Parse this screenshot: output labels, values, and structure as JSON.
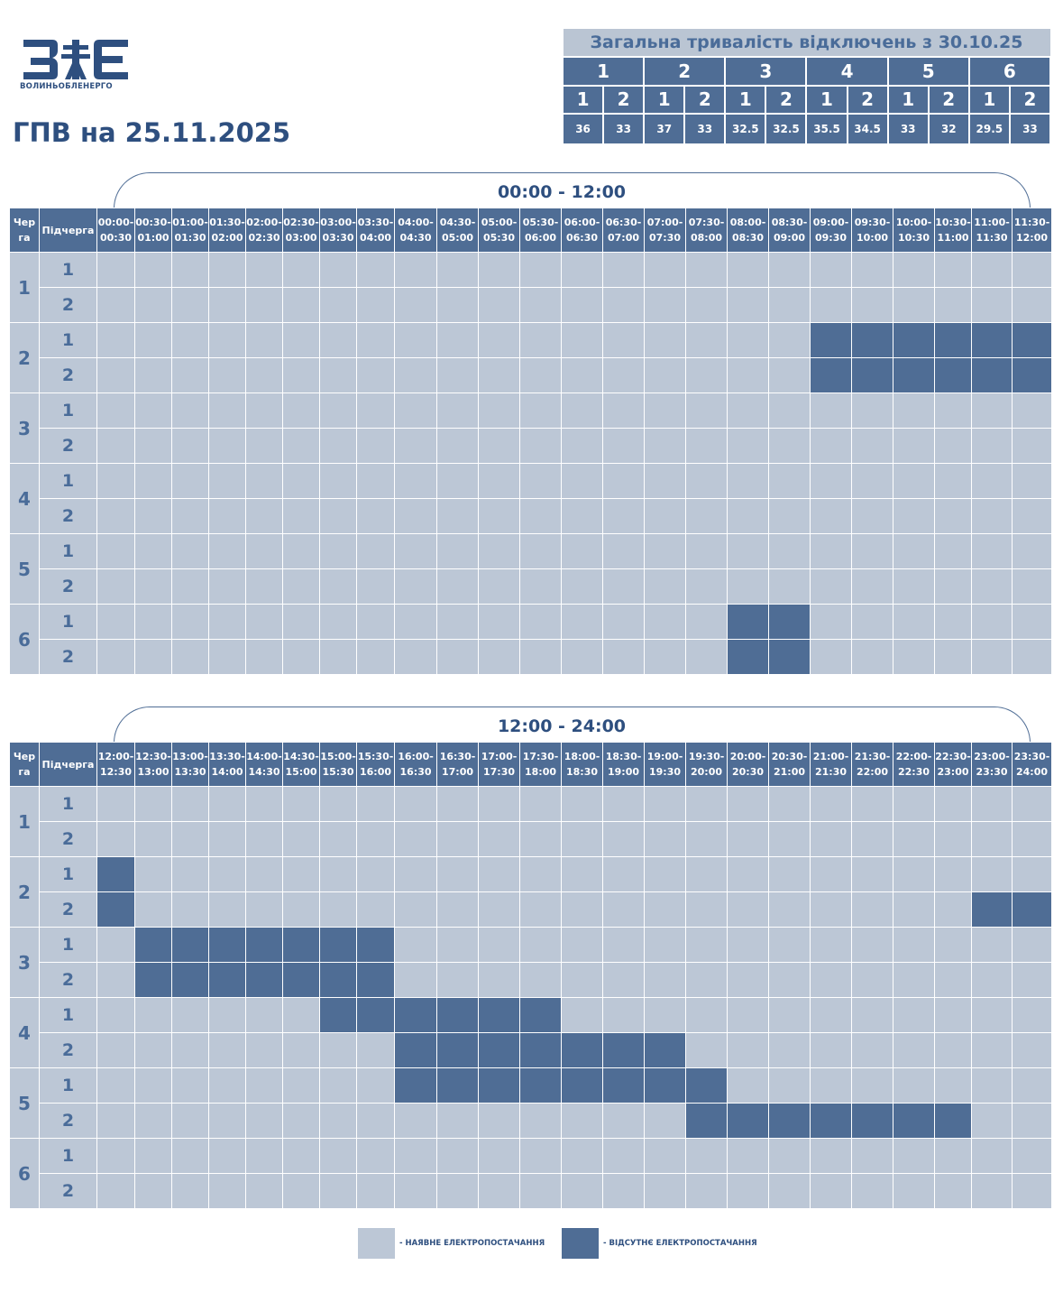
{
  "logo": {
    "text": "ВОЛИНЬОБЛЕНЕРГО",
    "icon": "zoe-logo-icon",
    "color": "#2e4f7f"
  },
  "title": "ГПВ на 25.11.2025",
  "summary": {
    "title": "Загальна тривалість відключень з 30.10.25",
    "queues": [
      "1",
      "2",
      "3",
      "4",
      "5",
      "6"
    ],
    "subqueues": [
      "1",
      "2",
      "1",
      "2",
      "1",
      "2",
      "1",
      "2",
      "1",
      "2",
      "1",
      "2"
    ],
    "durations": [
      "36",
      "33",
      "37",
      "33",
      "32.5",
      "32.5",
      "35.5",
      "34.5",
      "33",
      "32",
      "29.5",
      "33"
    ]
  },
  "headers": {
    "queue": "Черга",
    "subqueue": "Підчерга"
  },
  "colors": {
    "on": "#bcc7d6",
    "off": "#4f6d95",
    "text": "#2e4f7f"
  },
  "sections": [
    {
      "label": "00:00 - 12:00",
      "slots": [
        [
          "00:00-",
          "00:30"
        ],
        [
          "00:30-",
          "01:00"
        ],
        [
          "01:00-",
          "01:30"
        ],
        [
          "01:30-",
          "02:00"
        ],
        [
          "02:00-",
          "02:30"
        ],
        [
          "02:30-",
          "03:00"
        ],
        [
          "03:00-",
          "03:30"
        ],
        [
          "03:30-",
          "04:00"
        ],
        [
          "04:00-",
          "04:30"
        ],
        [
          "04:30-",
          "05:00"
        ],
        [
          "05:00-",
          "05:30"
        ],
        [
          "05:30-",
          "06:00"
        ],
        [
          "06:00-",
          "06:30"
        ],
        [
          "06:30-",
          "07:00"
        ],
        [
          "07:00-",
          "07:30"
        ],
        [
          "07:30-",
          "08:00"
        ],
        [
          "08:00-",
          "08:30"
        ],
        [
          "08:30-",
          "09:00"
        ],
        [
          "09:00-",
          "09:30"
        ],
        [
          "09:30-",
          "10:00"
        ],
        [
          "10:00-",
          "10:30"
        ],
        [
          "10:30-",
          "11:00"
        ],
        [
          "11:00-",
          "11:30"
        ],
        [
          "11:30-",
          "12:00"
        ]
      ],
      "rows": [
        {
          "queue": "1",
          "subqueues": [
            {
              "label": "1",
              "off": []
            },
            {
              "label": "2",
              "off": []
            }
          ]
        },
        {
          "queue": "2",
          "subqueues": [
            {
              "label": "1",
              "off": [
                18,
                19,
                20,
                21,
                22,
                23
              ]
            },
            {
              "label": "2",
              "off": [
                18,
                19,
                20,
                21,
                22,
                23
              ]
            }
          ]
        },
        {
          "queue": "3",
          "subqueues": [
            {
              "label": "1",
              "off": []
            },
            {
              "label": "2",
              "off": []
            }
          ]
        },
        {
          "queue": "4",
          "subqueues": [
            {
              "label": "1",
              "off": []
            },
            {
              "label": "2",
              "off": []
            }
          ]
        },
        {
          "queue": "5",
          "subqueues": [
            {
              "label": "1",
              "off": []
            },
            {
              "label": "2",
              "off": []
            }
          ]
        },
        {
          "queue": "6",
          "subqueues": [
            {
              "label": "1",
              "off": [
                16,
                17
              ]
            },
            {
              "label": "2",
              "off": [
                16,
                17
              ]
            }
          ]
        }
      ]
    },
    {
      "label": "12:00 - 24:00",
      "slots": [
        [
          "12:00-",
          "12:30"
        ],
        [
          "12:30-",
          "13:00"
        ],
        [
          "13:00-",
          "13:30"
        ],
        [
          "13:30-",
          "14:00"
        ],
        [
          "14:00-",
          "14:30"
        ],
        [
          "14:30-",
          "15:00"
        ],
        [
          "15:00-",
          "15:30"
        ],
        [
          "15:30-",
          "16:00"
        ],
        [
          "16:00-",
          "16:30"
        ],
        [
          "16:30-",
          "17:00"
        ],
        [
          "17:00-",
          "17:30"
        ],
        [
          "17:30-",
          "18:00"
        ],
        [
          "18:00-",
          "18:30"
        ],
        [
          "18:30-",
          "19:00"
        ],
        [
          "19:00-",
          "19:30"
        ],
        [
          "19:30-",
          "20:00"
        ],
        [
          "20:00-",
          "20:30"
        ],
        [
          "20:30-",
          "21:00"
        ],
        [
          "21:00-",
          "21:30"
        ],
        [
          "21:30-",
          "22:00"
        ],
        [
          "22:00-",
          "22:30"
        ],
        [
          "22:30-",
          "23:00"
        ],
        [
          "23:00-",
          "23:30"
        ],
        [
          "23:30-",
          "24:00"
        ]
      ],
      "rows": [
        {
          "queue": "1",
          "subqueues": [
            {
              "label": "1",
              "off": []
            },
            {
              "label": "2",
              "off": []
            }
          ]
        },
        {
          "queue": "2",
          "subqueues": [
            {
              "label": "1",
              "off": [
                0
              ]
            },
            {
              "label": "2",
              "off": [
                0,
                22,
                23
              ]
            }
          ]
        },
        {
          "queue": "3",
          "subqueues": [
            {
              "label": "1",
              "off": [
                1,
                2,
                3,
                4,
                5,
                6,
                7
              ]
            },
            {
              "label": "2",
              "off": [
                1,
                2,
                3,
                4,
                5,
                6,
                7
              ]
            }
          ]
        },
        {
          "queue": "4",
          "subqueues": [
            {
              "label": "1",
              "off": [
                6,
                7,
                8,
                9,
                10,
                11
              ]
            },
            {
              "label": "2",
              "off": [
                8,
                9,
                10,
                11,
                12,
                13,
                14
              ]
            }
          ]
        },
        {
          "queue": "5",
          "subqueues": [
            {
              "label": "1",
              "off": [
                8,
                9,
                10,
                11,
                12,
                13,
                14,
                15
              ]
            },
            {
              "label": "2",
              "off": [
                15,
                16,
                17,
                18,
                19,
                20,
                21
              ]
            }
          ]
        },
        {
          "queue": "6",
          "subqueues": [
            {
              "label": "1",
              "off": []
            },
            {
              "label": "2",
              "off": []
            }
          ]
        }
      ]
    }
  ],
  "legend": {
    "on_label": "- НАЯВНЕ ЕЛЕКТРОПОСТАЧАННЯ",
    "off_label": "- ВІДСУТНЄ ЕЛЕКТРОПОСТАЧАННЯ"
  }
}
